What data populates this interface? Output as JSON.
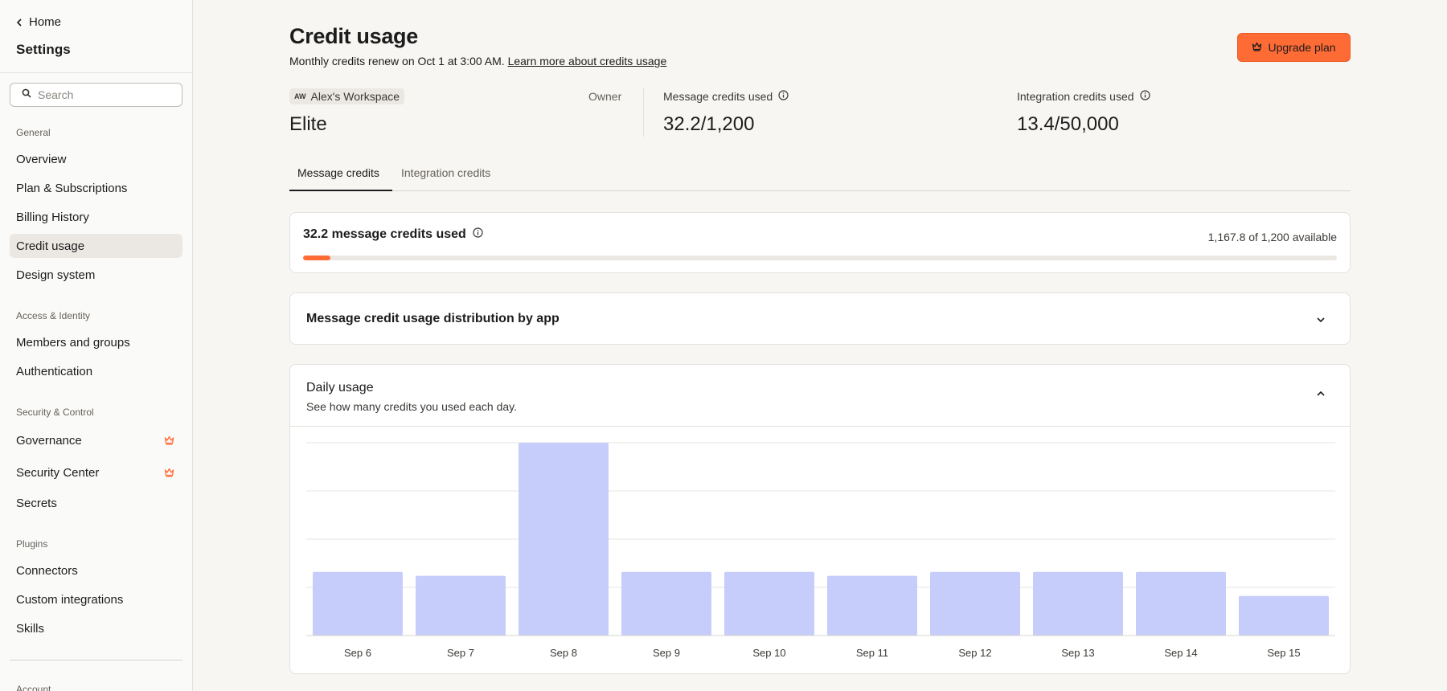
{
  "sidebar": {
    "back_label": "Home",
    "title": "Settings",
    "search_placeholder": "Search",
    "sections": {
      "general": "General",
      "access": "Access & Identity",
      "security": "Security & Control",
      "plugins": "Plugins",
      "account": "Account"
    },
    "items": {
      "overview": "Overview",
      "plan": "Plan & Subscriptions",
      "billing": "Billing History",
      "credit": "Credit usage",
      "design": "Design system",
      "members": "Members and groups",
      "auth": "Authentication",
      "governance": "Governance",
      "security_center": "Security Center",
      "secrets": "Secrets",
      "connectors": "Connectors",
      "custom_integrations": "Custom integrations",
      "skills": "Skills"
    }
  },
  "header": {
    "title": "Credit usage",
    "subtitle": "Monthly credits renew on Oct 1 at 3:00 AM.",
    "learn_more": "Learn more about credits usage",
    "upgrade_label": "Upgrade plan"
  },
  "workspace": {
    "abbr": "AW",
    "name": "Alex's Workspace",
    "role": "Owner",
    "plan": "Elite"
  },
  "stats": {
    "message_label": "Message credits used",
    "message_value": "32.2/1,200",
    "integration_label": "Integration credits used",
    "integration_value": "13.4/50,000"
  },
  "tabs": {
    "message": "Message credits",
    "integration": "Integration credits"
  },
  "usage_card": {
    "title": "32.2 message credits used",
    "available": "1,167.8 of 1,200 available",
    "used_fraction": 0.0268
  },
  "distribution_card": {
    "title": "Message credit usage distribution by app"
  },
  "daily_card": {
    "title": "Daily usage",
    "subtitle": "See how many credits you used each day."
  },
  "colors": {
    "accent": "#ff6b35",
    "bar": "#c7cdfa",
    "grid": "#e6e4df"
  },
  "chart_data": {
    "type": "bar",
    "categories": [
      "Sep 6",
      "Sep 7",
      "Sep 8",
      "Sep 9",
      "Sep 10",
      "Sep 11",
      "Sep 12",
      "Sep 13",
      "Sep 14",
      "Sep 15"
    ],
    "values": [
      1.32,
      1.24,
      4.0,
      1.32,
      1.32,
      1.24,
      1.32,
      1.32,
      1.32,
      0.82
    ],
    "ylim": [
      0,
      4
    ],
    "grid": true,
    "title": "",
    "xlabel": "",
    "ylabel": ""
  }
}
